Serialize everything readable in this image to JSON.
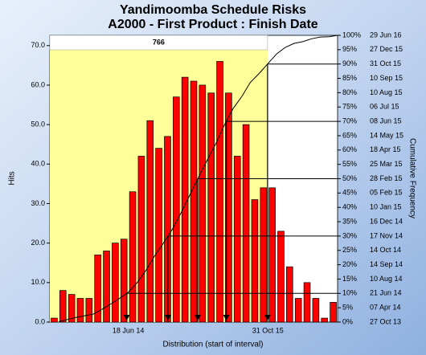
{
  "chart_data": {
    "type": "bar",
    "title": "Yandimoomba Schedule Risks",
    "subtitle": "A2000 - First Product : Finish Date",
    "x_label": "Distribution (start of interval)",
    "y_label": "Hits",
    "y2_label": "Cumulative Frequency",
    "shaded_label": "766",
    "categories": [
      null,
      null,
      null,
      null,
      null,
      null,
      null,
      null,
      null,
      "18 Jun 14",
      null,
      null,
      null,
      null,
      null,
      null,
      null,
      null,
      null,
      null,
      null,
      null,
      null,
      null,
      null,
      "31 Oct 15",
      null,
      null,
      null,
      null,
      null,
      null,
      null
    ],
    "series": [
      {
        "name": "Hits",
        "color": "#ff0000",
        "values": [
          1,
          8,
          7,
          6,
          6,
          17,
          18,
          20,
          21,
          33,
          42,
          51,
          44,
          47,
          57,
          62,
          61,
          60,
          58,
          66,
          58,
          42,
          50,
          31,
          34,
          34,
          23,
          14,
          6,
          10,
          6,
          1,
          5
        ]
      },
      {
        "name": "Cumulative Frequency",
        "color": "#000000",
        "axis": "y2",
        "values": [
          0.1,
          0.9,
          1.6,
          2.2,
          2.8,
          4.5,
          6.3,
          8.3,
          10.4,
          13.7,
          17.9,
          23.0,
          27.4,
          32.1,
          37.8,
          44.0,
          50.2,
          56.2,
          62.0,
          68.6,
          74.4,
          78.6,
          83.6,
          86.7,
          90.1,
          93.5,
          95.8,
          97.2,
          97.8,
          98.8,
          99.4,
          99.5,
          100
        ]
      }
    ],
    "markers": [
      10,
      30,
      50,
      70,
      90
    ],
    "ylim": [
      0,
      72.6
    ],
    "yticks": [
      {
        "value": 0,
        "label": "0.0"
      },
      {
        "value": 10,
        "label": "10.0"
      },
      {
        "value": 20,
        "label": "20.0"
      },
      {
        "value": 30,
        "label": "30.0"
      },
      {
        "value": 40,
        "label": "40.0"
      },
      {
        "value": 50,
        "label": "50.0"
      },
      {
        "value": 60,
        "label": "60.0"
      },
      {
        "value": 70,
        "label": "70.0"
      }
    ],
    "y2lim": [
      0,
      100
    ],
    "y2ticks": [
      {
        "value": 0,
        "label": "0%"
      },
      {
        "value": 5,
        "label": "5%"
      },
      {
        "value": 10,
        "label": "10%"
      },
      {
        "value": 15,
        "label": "15%"
      },
      {
        "value": 20,
        "label": "20%"
      },
      {
        "value": 25,
        "label": "25%"
      },
      {
        "value": 30,
        "label": "30%"
      },
      {
        "value": 35,
        "label": "35%"
      },
      {
        "value": 40,
        "label": "40%"
      },
      {
        "value": 45,
        "label": "45%"
      },
      {
        "value": 50,
        "label": "50%"
      },
      {
        "value": 55,
        "label": "55%"
      },
      {
        "value": 60,
        "label": "60%"
      },
      {
        "value": 65,
        "label": "65%"
      },
      {
        "value": 70,
        "label": "70%"
      },
      {
        "value": 75,
        "label": "75%"
      },
      {
        "value": 80,
        "label": "80%"
      },
      {
        "value": 85,
        "label": "85%"
      },
      {
        "value": 90,
        "label": "90%"
      },
      {
        "value": 95,
        "label": "95%"
      },
      {
        "value": 100,
        "label": "100%"
      }
    ],
    "y2tick_dates": [
      "27 Oct 13",
      "07 Apr 14",
      "21 Jun 14",
      "10 Aug 14",
      "14 Sep 14",
      "14 Oct 14",
      "17 Nov 14",
      "16 Dec 14",
      "10 Jan 15",
      "05 Feb 15",
      "28 Feb 15",
      "25 Mar 15",
      "18 Apr 15",
      "14 May 15",
      "08 Jun 15",
      "06 Jul 15",
      "10 Aug 15",
      "10 Sep 15",
      "31 Oct 15",
      "27 Dec 15",
      "29 Jun 16"
    ]
  }
}
